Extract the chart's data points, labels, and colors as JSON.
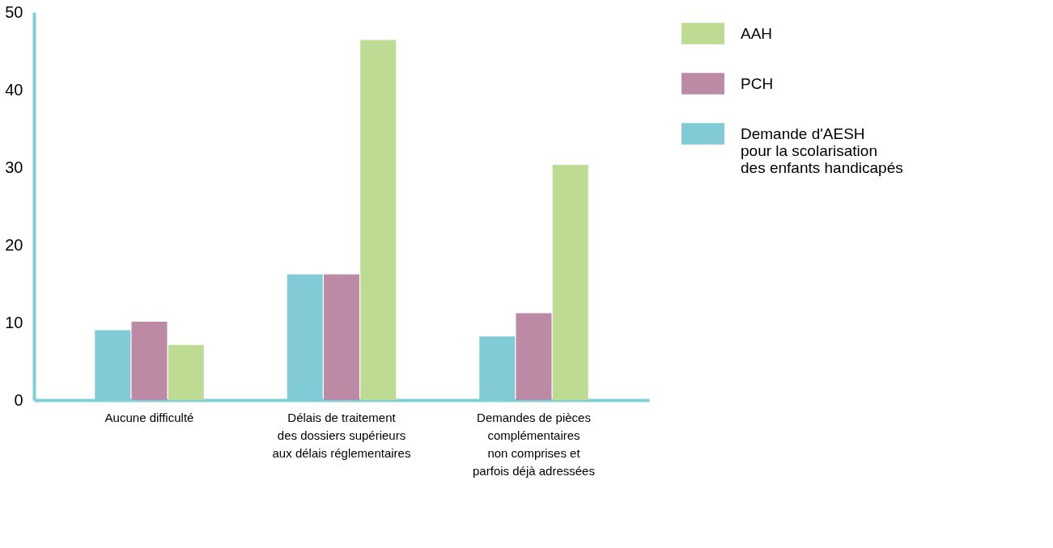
{
  "chart_data": {
    "type": "bar",
    "categories": [
      "Aucune difficulté",
      "Délais de traitement\ndes dossiers supérieurs\naux délais réglementaires",
      "Demandes de pièces\ncomplémentaires\nnon comprises et\nparfois déjà adressées"
    ],
    "series": [
      {
        "name": "Demande d'AESH\npour la scolarisation\ndes enfants handicapés",
        "color": "#80cbd6",
        "values": [
          9,
          16.2,
          8.2
        ]
      },
      {
        "name": "PCH",
        "color": "#bc8aa5",
        "values": [
          10.1,
          16.2,
          11.2
        ]
      },
      {
        "name": "AAH",
        "color": "#bddb93",
        "values": [
          7.1,
          46.4,
          30.3
        ]
      }
    ],
    "ylim": [
      0,
      50
    ],
    "yticks": [
      0,
      10,
      20,
      30,
      40,
      50
    ],
    "grid": false,
    "legend": "top right"
  }
}
